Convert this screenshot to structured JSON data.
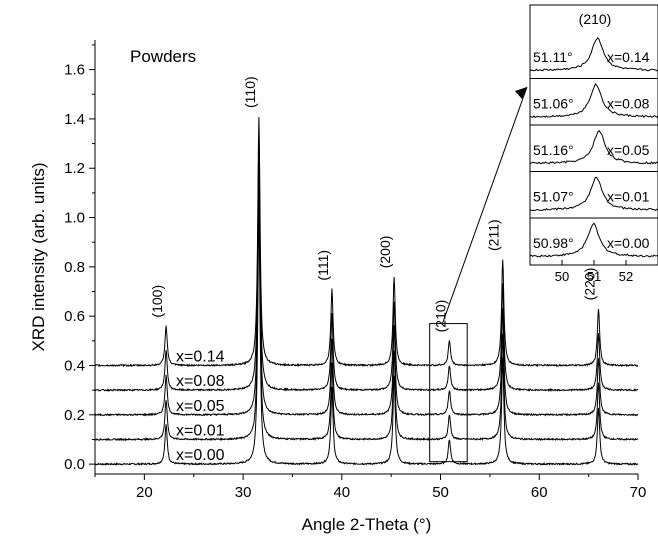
{
  "chart_data": {
    "type": "line",
    "panel_label": "Powders",
    "xlabel": "Angle 2-Theta (°)",
    "ylabel": "XRD intensity (arb. units)",
    "xlim": [
      15,
      70
    ],
    "ylim": [
      -0.04,
      1.72
    ],
    "xticks": [
      "20",
      "30",
      "40",
      "50",
      "60",
      "70"
    ],
    "yticks": [
      "0.0",
      "0.2",
      "0.4",
      "0.6",
      "0.8",
      "1.0",
      "1.2",
      "1.4",
      "1.6"
    ],
    "series": [
      {
        "name": "x=0.00",
        "offset": 0.0
      },
      {
        "name": "x=0.01",
        "offset": 0.1
      },
      {
        "name": "x=0.05",
        "offset": 0.2
      },
      {
        "name": "x=0.08",
        "offset": 0.3
      },
      {
        "name": "x=0.14",
        "offset": 0.4
      }
    ],
    "peaks": [
      {
        "label": "(100)",
        "x": 22.2,
        "top": 0.57
      },
      {
        "label": "(110)",
        "x": 31.6,
        "top": 1.42
      },
      {
        "label": "(111)",
        "x": 39.0,
        "top": 0.72
      },
      {
        "label": "(200)",
        "x": 45.3,
        "top": 0.77
      },
      {
        "label": "(210)",
        "x": 50.9,
        "top": 0.51
      },
      {
        "label": "(211)",
        "x": 56.3,
        "top": 0.84
      },
      {
        "label": "(220)",
        "x": 66.0,
        "top": 0.64
      }
    ],
    "zoom_box": {
      "x": [
        48.9,
        52.7
      ],
      "y": [
        0.01,
        0.57
      ]
    },
    "inset": {
      "title": "(210)",
      "xlim": [
        49,
        53
      ],
      "xticks": [
        "50",
        "51",
        "52"
      ],
      "panels": [
        {
          "angle": "51.11°",
          "series": "x=0.14",
          "peak_x": 51.11
        },
        {
          "angle": "51.06°",
          "series": "x=0.08",
          "peak_x": 51.06
        },
        {
          "angle": "51.16°",
          "series": "x=0.05",
          "peak_x": 51.16
        },
        {
          "angle": "51.07°",
          "series": "x=0.01",
          "peak_x": 51.07
        },
        {
          "angle": "50.98°",
          "series": "x=0.00",
          "peak_x": 50.98
        }
      ]
    }
  }
}
